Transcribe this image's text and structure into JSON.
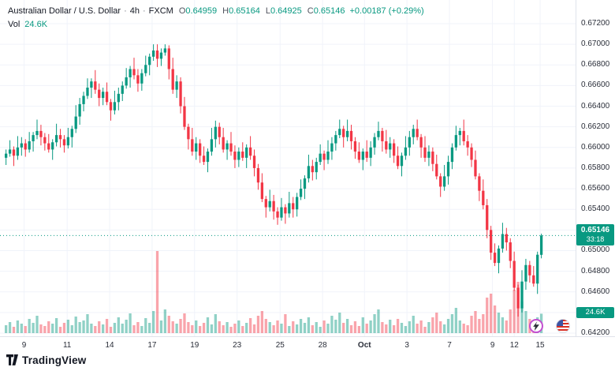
{
  "header": {
    "title": "Australian Dollar / U.S. Dollar",
    "dot": "·",
    "interval": "4h",
    "exchange": "FXCM",
    "o_label": "O",
    "o_value": "0.64959",
    "h_label": "H",
    "h_value": "0.65164",
    "l_label": "L",
    "l_value": "0.64925",
    "c_label": "C",
    "c_value": "0.65146",
    "change_value": "+0.00187 (+0.29%)",
    "vol_label": "Vol",
    "vol_value": "24.6K"
  },
  "footer": {
    "brand": "TradingView"
  },
  "colors": {
    "up": "#089981",
    "down": "#f23645",
    "vol_up": "rgba(8,153,129,0.45)",
    "vol_down": "rgba(242,54,69,0.45)",
    "grid": "#f0f3fa",
    "axis_text": "#2a2e39",
    "label_bg": "#089981",
    "border": "#e0e3eb"
  },
  "chart_data": {
    "type": "candlestick",
    "title": "Australian Dollar / U.S. Dollar · 4h · FXCM",
    "interval": "4h",
    "current_price": 0.65146,
    "current_price_str": "0.65146",
    "countdown": "33:18",
    "current_volume_label": "24.6K",
    "y_axis": {
      "min": 0.642,
      "max": 0.672,
      "tick_step": 0.002,
      "ticks": [
        "0.67200",
        "0.67000",
        "0.66800",
        "0.66600",
        "0.66400",
        "0.66200",
        "0.66000",
        "0.65800",
        "0.65600",
        "0.65400",
        "0.65200",
        "0.65000",
        "0.64800",
        "0.64600",
        "0.64400",
        "0.64200"
      ]
    },
    "x_axis": {
      "labels": [
        {
          "text": "9",
          "pos": 0.042
        },
        {
          "text": "11",
          "pos": 0.117
        },
        {
          "text": "14",
          "pos": 0.191
        },
        {
          "text": "17",
          "pos": 0.265
        },
        {
          "text": "19",
          "pos": 0.339
        },
        {
          "text": "23",
          "pos": 0.413
        },
        {
          "text": "25",
          "pos": 0.488
        },
        {
          "text": "28",
          "pos": 0.562
        },
        {
          "text": "Oct",
          "pos": 0.635,
          "bold": true
        },
        {
          "text": "3",
          "pos": 0.709
        },
        {
          "text": "7",
          "pos": 0.783
        },
        {
          "text": "9",
          "pos": 0.858
        },
        {
          "text": "12",
          "pos": 0.896
        },
        {
          "text": "15",
          "pos": 0.941
        }
      ]
    },
    "first_open": 0.659,
    "closes": [
      0.6594,
      0.6598,
      0.6592,
      0.66,
      0.6604,
      0.6598,
      0.6606,
      0.6612,
      0.6616,
      0.661,
      0.6604,
      0.6598,
      0.6605,
      0.6612,
      0.6608,
      0.6602,
      0.661,
      0.6618,
      0.663,
      0.6642,
      0.665,
      0.6658,
      0.6664,
      0.6656,
      0.6648,
      0.6654,
      0.6644,
      0.6636,
      0.6644,
      0.6652,
      0.666,
      0.6668,
      0.6676,
      0.667,
      0.6662,
      0.6672,
      0.668,
      0.6688,
      0.6694,
      0.6686,
      0.6692,
      0.6696,
      0.6676,
      0.6656,
      0.6664,
      0.664,
      0.662,
      0.6608,
      0.6596,
      0.6604,
      0.6592,
      0.6586,
      0.6596,
      0.6608,
      0.662,
      0.661,
      0.6598,
      0.6604,
      0.6596,
      0.6588,
      0.6596,
      0.659,
      0.66,
      0.6592,
      0.658,
      0.6566,
      0.655,
      0.6542,
      0.6548,
      0.6538,
      0.6532,
      0.6542,
      0.6536,
      0.6546,
      0.654,
      0.6552,
      0.656,
      0.657,
      0.6582,
      0.6576,
      0.6586,
      0.6594,
      0.6588,
      0.6596,
      0.6604,
      0.6612,
      0.6618,
      0.661,
      0.6616,
      0.6606,
      0.6596,
      0.6588,
      0.6596,
      0.659,
      0.66,
      0.661,
      0.6616,
      0.6606,
      0.6598,
      0.6604,
      0.6592,
      0.6582,
      0.6592,
      0.66,
      0.661,
      0.6618,
      0.661,
      0.66,
      0.659,
      0.6596,
      0.6584,
      0.6572,
      0.6562,
      0.6572,
      0.6586,
      0.66,
      0.6612,
      0.6616,
      0.6606,
      0.66,
      0.6588,
      0.6572,
      0.6558,
      0.6544,
      0.652,
      0.6498,
      0.6488,
      0.6502,
      0.6516,
      0.6508,
      0.649,
      0.6464,
      0.6444,
      0.647,
      0.6486,
      0.6476,
      0.6468,
      0.6496,
      0.65146
    ],
    "volumes_k": [
      10,
      14,
      8,
      16,
      12,
      9,
      18,
      13,
      22,
      11,
      9,
      15,
      12,
      19,
      8,
      13,
      17,
      10,
      21,
      14,
      16,
      24,
      12,
      9,
      15,
      11,
      18,
      8,
      13,
      20,
      12,
      17,
      25,
      10,
      14,
      9,
      19,
      13,
      28,
      104,
      16,
      30,
      22,
      15,
      12,
      18,
      25,
      14,
      10,
      16,
      9,
      13,
      20,
      11,
      24,
      15,
      10,
      14,
      8,
      12,
      16,
      9,
      13,
      19,
      11,
      22,
      28,
      18,
      14,
      10,
      16,
      12,
      24,
      9,
      15,
      11,
      18,
      13,
      20,
      10,
      14,
      8,
      16,
      12,
      22,
      17,
      26,
      13,
      18,
      10,
      15,
      9,
      20,
      12,
      16,
      24,
      30,
      14,
      11,
      17,
      10,
      18,
      13,
      9,
      15,
      22,
      12,
      16,
      8,
      14,
      20,
      26,
      15,
      11,
      18,
      24,
      32,
      16,
      12,
      10,
      22,
      28,
      18,
      24,
      45,
      50,
      35,
      26,
      20,
      16,
      30,
      55,
      65,
      40,
      28,
      18,
      14,
      20,
      24.6
    ],
    "wick_high_pattern": [
      0.0004,
      0.0009,
      0.0003,
      0.0011,
      0.0006
    ],
    "wick_low_pattern": [
      0.0007,
      0.0003,
      0.001,
      0.0004,
      0.0008
    ],
    "high_overrides": {
      "38": 0.67,
      "41": 0.67
    },
    "low_overrides": {
      "132": 0.6436
    },
    "last_override": {
      "open": 0.64959,
      "high": 0.65164,
      "low": 0.64925,
      "close": 0.65146
    }
  }
}
